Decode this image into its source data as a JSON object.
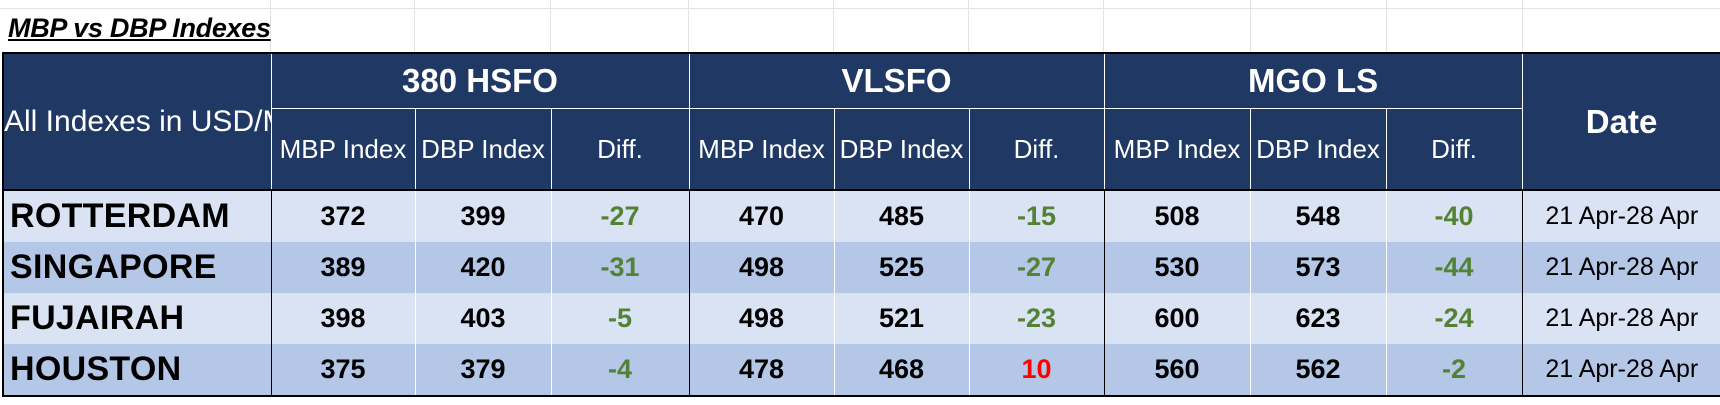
{
  "title": "MBP vs DBP Indexes",
  "header": {
    "corner": "All Indexes in USD/MT",
    "groups": [
      "380 HSFO",
      "VLSFO",
      "MGO LS"
    ],
    "sub": [
      "MBP Index",
      "DBP Index",
      "Diff."
    ],
    "date": "Date"
  },
  "rows": [
    {
      "port": "ROTTERDAM",
      "hsfo": [
        "372",
        "399",
        "-27"
      ],
      "vlsfo": [
        "470",
        "485",
        "-15"
      ],
      "mgo": [
        "508",
        "548",
        "-40"
      ],
      "date": "21 Apr-28 Apr"
    },
    {
      "port": "SINGAPORE",
      "hsfo": [
        "389",
        "420",
        "-31"
      ],
      "vlsfo": [
        "498",
        "525",
        "-27"
      ],
      "mgo": [
        "530",
        "573",
        "-44"
      ],
      "date": "21 Apr-28 Apr"
    },
    {
      "port": "FUJAIRAH",
      "hsfo": [
        "398",
        "403",
        "-5"
      ],
      "vlsfo": [
        "498",
        "521",
        "-23"
      ],
      "mgo": [
        "600",
        "623",
        "-24"
      ],
      "date": "21 Apr-28 Apr"
    },
    {
      "port": "HOUSTON",
      "hsfo": [
        "375",
        "379",
        "-4"
      ],
      "vlsfo": [
        "478",
        "468",
        "10"
      ],
      "mgo": [
        "560",
        "562",
        "-2"
      ],
      "date": "21 Apr-28 Apr"
    }
  ],
  "colors": {
    "header_bg": "#203864",
    "row_light": "#dae3f3",
    "row_dark": "#b4c7e7",
    "negative_diff": "#548235",
    "positive_diff": "#ff0000"
  }
}
